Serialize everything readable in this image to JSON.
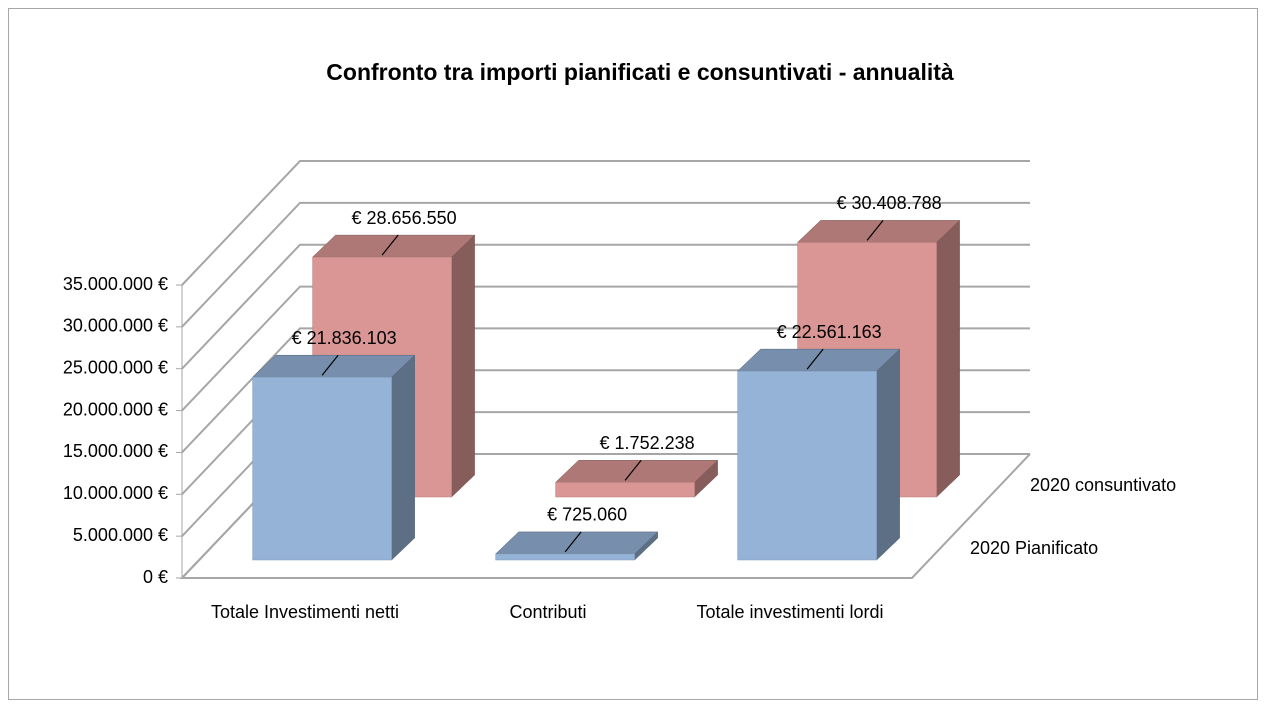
{
  "chart_data": {
    "type": "bar3d",
    "title": "Confronto  tra importi pianificati e consuntivati - annualità",
    "categories": [
      "Totale Investimenti netti",
      "Contributi",
      "Totale investimenti lordi"
    ],
    "series": [
      {
        "name": "2020 Pianificato",
        "color": "#95b3d7",
        "values": [
          21836103,
          725060,
          22561163
        ],
        "value_labels": [
          "€ 21.836.103",
          "€ 725.060",
          "€ 22.561.163"
        ]
      },
      {
        "name": "2020 consuntivato",
        "color": "#d99694",
        "values": [
          28656550,
          1752238,
          30408788
        ],
        "value_labels": [
          "€ 28.656.550",
          "€ 1.752.238",
          "€ 30.408.788"
        ]
      }
    ],
    "ylim": [
      0,
      35000000
    ],
    "yticks": [
      {
        "value": 0,
        "label": "0 €"
      },
      {
        "value": 5000000,
        "label": "5.000.000 €"
      },
      {
        "value": 10000000,
        "label": "10.000.000 €"
      },
      {
        "value": 15000000,
        "label": "15.000.000 €"
      },
      {
        "value": 20000000,
        "label": "20.000.000 €"
      },
      {
        "value": 25000000,
        "label": "25.000.000 €"
      },
      {
        "value": 30000000,
        "label": "30.000.000 €"
      },
      {
        "value": 35000000,
        "label": "35.000.000 €"
      }
    ],
    "grid": true
  }
}
